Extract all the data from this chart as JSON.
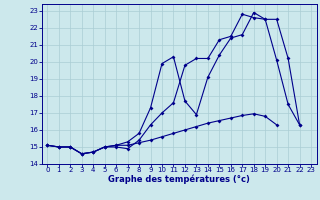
{
  "xlabel": "Graphe des températures (°c)",
  "bg_color": "#cce8ec",
  "grid_color": "#aacdd4",
  "line_color": "#00008b",
  "xlim": [
    -0.5,
    23.5
  ],
  "ylim": [
    14,
    23.4
  ],
  "xticks": [
    0,
    1,
    2,
    3,
    4,
    5,
    6,
    7,
    8,
    9,
    10,
    11,
    12,
    13,
    14,
    15,
    16,
    17,
    18,
    19,
    20,
    21,
    22,
    23
  ],
  "yticks": [
    14,
    15,
    16,
    17,
    18,
    19,
    20,
    21,
    22,
    23
  ],
  "line1_y": [
    15.1,
    15.0,
    15.0,
    14.6,
    14.7,
    15.0,
    15.0,
    14.9,
    15.4,
    16.3,
    17.0,
    17.6,
    19.8,
    20.2,
    20.2,
    21.3,
    21.5,
    22.8,
    22.6,
    22.5,
    20.1,
    17.5,
    16.3,
    null
  ],
  "line2_y": [
    15.1,
    15.0,
    15.0,
    14.6,
    14.7,
    15.0,
    15.1,
    15.1,
    15.25,
    15.4,
    15.6,
    15.8,
    16.0,
    16.2,
    16.4,
    16.55,
    16.7,
    16.85,
    16.95,
    16.8,
    16.3,
    null,
    null,
    null
  ],
  "line3_y": [
    15.1,
    15.0,
    15.0,
    14.6,
    14.7,
    15.0,
    15.1,
    15.3,
    15.8,
    17.3,
    19.9,
    20.3,
    17.7,
    16.9,
    19.1,
    20.4,
    21.4,
    21.6,
    22.9,
    22.5,
    22.5,
    20.2,
    16.3,
    null
  ]
}
